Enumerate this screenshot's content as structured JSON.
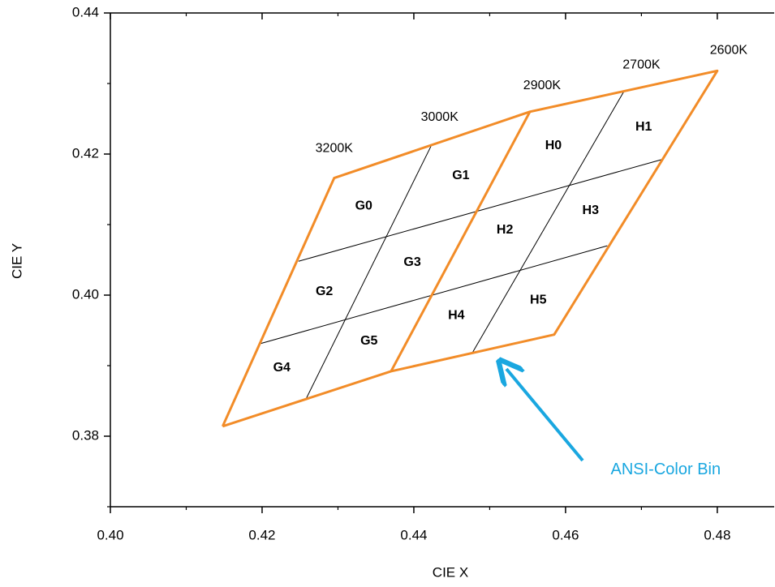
{
  "chart_data": {
    "type": "line",
    "xlabel": "CIE X",
    "ylabel": "CIE Y",
    "xlim": [
      0.4,
      0.4875
    ],
    "ylim": [
      0.37,
      0.44
    ],
    "xticks": [
      {
        "value": 0.4,
        "label": "0.40"
      },
      0.42,
      0.44,
      0.46,
      0.48
    ],
    "yticks": [
      0.38,
      {
        "value": 0.4,
        "label": "0.40"
      },
      0.42,
      0.44
    ],
    "xminorticks": [
      0.41,
      0.43,
      0.45,
      0.47
    ],
    "yminorticks": [
      0.37,
      0.39,
      0.41,
      0.43
    ],
    "boundary_color": "#f28c28",
    "divider_color": "#000000",
    "bin_boundaries": [
      {
        "x": [
          0.4148,
          0.4295,
          0.4553,
          0.48,
          0.4585,
          0.437,
          0.4148
        ],
        "y": [
          0.3814,
          0.4166,
          0.426,
          0.4318,
          0.3944,
          0.3892,
          0.3814
        ]
      },
      {
        "x": [
          0.4553,
          0.437
        ],
        "y": [
          0.426,
          0.3892
        ]
      }
    ],
    "bin_dividers": [
      {
        "x": [
          0.4423,
          0.4258
        ],
        "y": [
          0.4212,
          0.3853
        ]
      },
      {
        "x": [
          0.4677,
          0.4477
        ],
        "y": [
          0.4289,
          0.3918
        ]
      },
      {
        "x": [
          0.4248,
          0.4726
        ],
        "y": [
          0.4048,
          0.4192
        ]
      },
      {
        "x": [
          0.4197,
          0.4655
        ],
        "y": [
          0.3931,
          0.407
        ]
      }
    ],
    "bins": [
      {
        "label": "G0",
        "x": 0.4334,
        "y": 0.4126
      },
      {
        "label": "G1",
        "x": 0.4462,
        "y": 0.4169
      },
      {
        "label": "H0",
        "x": 0.4584,
        "y": 0.4212
      },
      {
        "label": "H1",
        "x": 0.4703,
        "y": 0.4238
      },
      {
        "label": "G2",
        "x": 0.4282,
        "y": 0.4005
      },
      {
        "label": "G3",
        "x": 0.4398,
        "y": 0.4046
      },
      {
        "label": "H2",
        "x": 0.452,
        "y": 0.4092
      },
      {
        "label": "H3",
        "x": 0.4633,
        "y": 0.412
      },
      {
        "label": "G4",
        "x": 0.4226,
        "y": 0.3897
      },
      {
        "label": "G5",
        "x": 0.4341,
        "y": 0.3935
      },
      {
        "label": "H4",
        "x": 0.4456,
        "y": 0.3971
      },
      {
        "label": "H5",
        "x": 0.4564,
        "y": 0.3993
      }
    ],
    "cct_labels": [
      {
        "label": "3200K",
        "x": 0.4295,
        "y": 0.4208
      },
      {
        "label": "3000K",
        "x": 0.4434,
        "y": 0.4252
      },
      {
        "label": "2900K",
        "x": 0.4569,
        "y": 0.4297
      },
      {
        "label": "2700K",
        "x": 0.47,
        "y": 0.4326
      },
      {
        "label": "2600K",
        "x": 0.4815,
        "y": 0.4347
      }
    ],
    "callout": {
      "text": "ANSI-Color Bin",
      "x": 0.4732,
      "y": 0.3752,
      "color": "#1aa7e0"
    }
  }
}
